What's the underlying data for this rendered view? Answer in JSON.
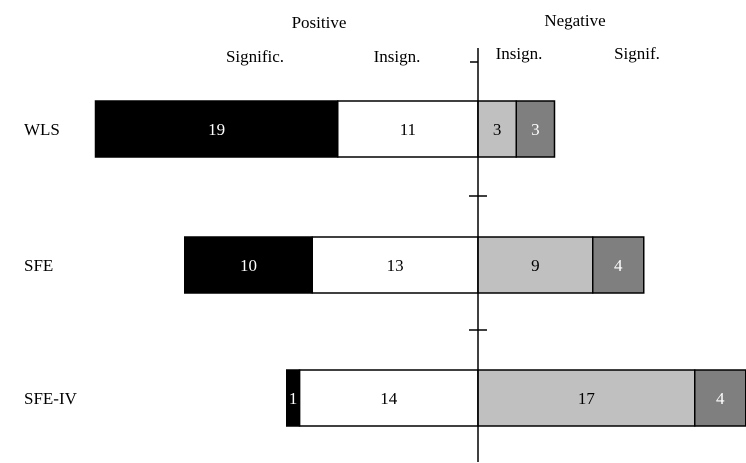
{
  "chart_data": {
    "type": "bar",
    "orientation": "horizontal",
    "stacked": "diverging",
    "title": "",
    "xlabel": "",
    "ylabel": "",
    "group_headers": {
      "positive": "Positive",
      "negative": "Negative"
    },
    "categories": [
      "WLS",
      "SFE",
      "SFE-IV"
    ],
    "series": [
      {
        "name": "Signific.",
        "side": "positive",
        "color": "#000000",
        "label_color": "#ffffff",
        "values": [
          19,
          10,
          1
        ]
      },
      {
        "name": "Insign.",
        "side": "positive",
        "color": "#ffffff",
        "label_color": "#000000",
        "values": [
          11,
          13,
          14
        ]
      },
      {
        "name": "Insign.",
        "side": "negative",
        "color": "#c0c0c0",
        "label_color": "#000000",
        "values": [
          3,
          9,
          17
        ]
      },
      {
        "name": "Signif.",
        "side": "negative",
        "color": "#7f7f7f",
        "label_color": "#ffffff",
        "values": [
          3,
          4,
          4
        ]
      }
    ],
    "grid": false,
    "legend": "top"
  }
}
